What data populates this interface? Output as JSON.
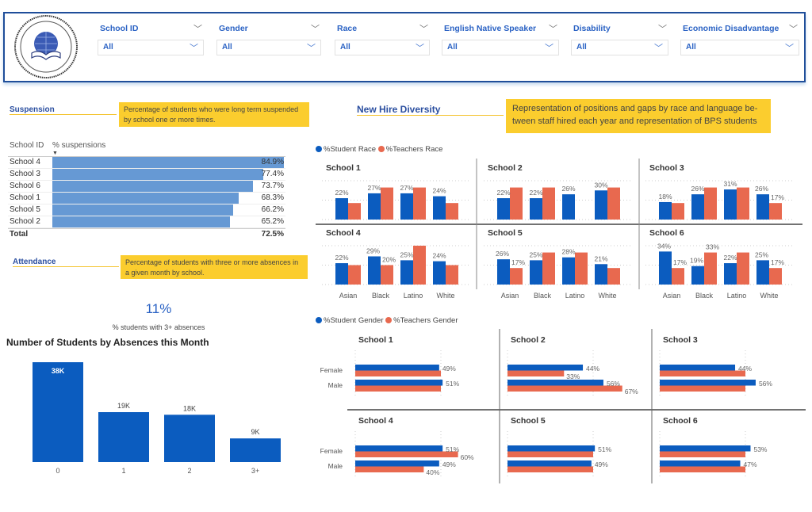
{
  "logo": {
    "text": "BUFFALO PUBLIC SCHOOLS"
  },
  "slicers": [
    {
      "label": "School ID",
      "value": "All"
    },
    {
      "label": "Gender",
      "value": "All"
    },
    {
      "label": "Race",
      "value": "All"
    },
    {
      "label": "English Native Speaker",
      "value": "All"
    },
    {
      "label": "Disability",
      "value": "All"
    },
    {
      "label": "Economic Disadvantage",
      "value": "All"
    }
  ],
  "suspension": {
    "title": "Suspension",
    "note": "Percentage of students who were long term suspended by school one or more times.",
    "col_school": "School ID",
    "col_value": "% suspensions",
    "rows": [
      {
        "school": "School 4",
        "value": 84.9,
        "label": "84.9%"
      },
      {
        "school": "School 3",
        "value": 77.4,
        "label": "77.4%"
      },
      {
        "school": "School 6",
        "value": 73.7,
        "label": "73.7%"
      },
      {
        "school": "School 1",
        "value": 68.3,
        "label": "68.3%"
      },
      {
        "school": "School 5",
        "value": 66.2,
        "label": "66.2%"
      },
      {
        "school": "School 2",
        "value": 65.2,
        "label": "65.2%"
      }
    ],
    "total_label": "Total",
    "total_value": "72.5%"
  },
  "attendance": {
    "title": "Attendance",
    "note": "Percentage of students with three or more absences in a given month by school.",
    "kpi": "11%",
    "kpi_caption": "% students with 3+ absences"
  },
  "chart_data": [
    {
      "type": "bar",
      "title": "Number of Students by Absences this Month",
      "categories": [
        "0",
        "1",
        "2",
        "3+"
      ],
      "values": [
        38000,
        19000,
        18000,
        9000
      ],
      "labels": [
        "38K",
        "19K",
        "18K",
        "9K"
      ],
      "color": "#0b5cbf"
    },
    {
      "type": "bar",
      "title": "New Hire Diversity",
      "note": "Representation of positions and gaps by race and language be-tween staff hired each year and representation of BPS students",
      "legend": [
        "%Student Race",
        "%Teachers Race"
      ],
      "colors": {
        "student": "#0b5cbf",
        "teacher": "#e8694f"
      },
      "categories": [
        "Asian",
        "Black",
        "Latino",
        "White"
      ],
      "ylim": [
        0,
        40
      ],
      "schools": [
        {
          "name": "School 1",
          "student": [
            22,
            27,
            27,
            24
          ],
          "teacher": [
            17,
            33,
            33,
            17
          ],
          "teacher_labels": [
            null,
            null,
            null,
            null
          ]
        },
        {
          "name": "School 2",
          "student": [
            22,
            22,
            26,
            30
          ],
          "teacher": [
            33,
            33,
            0,
            33
          ],
          "teacher_labels": [
            null,
            null,
            null,
            null
          ]
        },
        {
          "name": "School 3",
          "student": [
            18,
            26,
            31,
            26
          ],
          "teacher": [
            17,
            33,
            33,
            17
          ],
          "teacher_labels": [
            null,
            null,
            null,
            "17%"
          ]
        },
        {
          "name": "School 4",
          "student": [
            22,
            29,
            25,
            24
          ],
          "teacher": [
            20,
            20,
            40,
            20
          ],
          "teacher_labels": [
            null,
            "20%",
            null,
            null
          ]
        },
        {
          "name": "School 5",
          "student": [
            26,
            25,
            28,
            21
          ],
          "teacher": [
            17,
            33,
            33,
            17
          ],
          "teacher_labels": [
            "17%",
            null,
            null,
            null
          ]
        },
        {
          "name": "School 6",
          "student": [
            34,
            19,
            22,
            25
          ],
          "teacher": [
            17,
            33,
            33,
            17
          ],
          "teacher_labels": [
            "17%",
            "33%",
            null,
            "17%"
          ]
        }
      ]
    },
    {
      "type": "bar",
      "orientation": "horizontal",
      "legend": [
        "%Student Gender",
        "%Teachers Gender"
      ],
      "colors": {
        "student": "#0b5cbf",
        "teacher": "#e8694f"
      },
      "categories": [
        "Female",
        "Male"
      ],
      "schools": [
        {
          "name": "School 1",
          "student": [
            49,
            51
          ],
          "teacher": [
            50,
            50
          ],
          "teacher_labels": [
            null,
            null
          ]
        },
        {
          "name": "School 2",
          "student": [
            44,
            56
          ],
          "teacher": [
            33,
            67
          ],
          "teacher_labels": [
            "33%",
            "67%"
          ]
        },
        {
          "name": "School 3",
          "student": [
            44,
            56
          ],
          "teacher": [
            50,
            50
          ],
          "teacher_labels": [
            null,
            null
          ]
        },
        {
          "name": "School 4",
          "student": [
            51,
            49
          ],
          "teacher": [
            60,
            40
          ],
          "teacher_labels": [
            "60%",
            "40%"
          ]
        },
        {
          "name": "School 5",
          "student": [
            51,
            49
          ],
          "teacher": [
            50,
            50
          ],
          "teacher_labels": [
            null,
            null
          ]
        },
        {
          "name": "School 6",
          "student": [
            53,
            47
          ],
          "teacher": [
            50,
            50
          ],
          "teacher_labels": [
            null,
            null
          ]
        }
      ]
    }
  ]
}
